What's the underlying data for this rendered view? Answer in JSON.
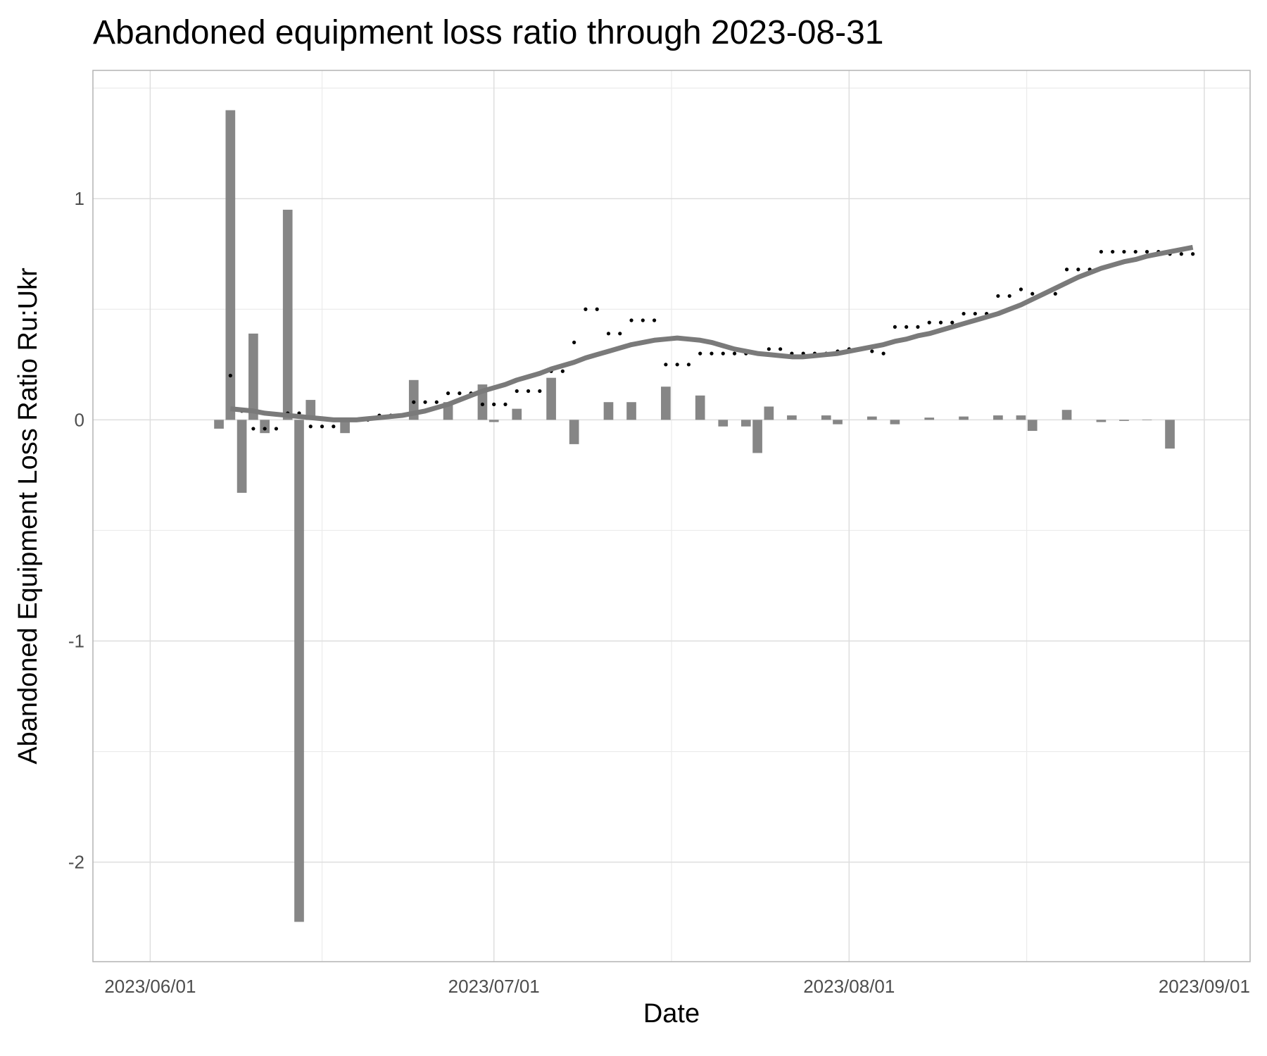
{
  "chart_data": {
    "type": "combo",
    "title": "Abandoned equipment loss ratio through 2023-08-31",
    "x_label": "Date",
    "y_label": "Abandoned Equipment Loss Ratio Ru:Ukr",
    "x": [
      "2023-06-07",
      "2023-06-08",
      "2023-06-09",
      "2023-06-10",
      "2023-06-11",
      "2023-06-12",
      "2023-06-13",
      "2023-06-14",
      "2023-06-15",
      "2023-06-16",
      "2023-06-17",
      "2023-06-18",
      "2023-06-19",
      "2023-06-20",
      "2023-06-21",
      "2023-06-22",
      "2023-06-23",
      "2023-06-24",
      "2023-06-25",
      "2023-06-26",
      "2023-06-27",
      "2023-06-28",
      "2023-06-29",
      "2023-06-30",
      "2023-07-01",
      "2023-07-02",
      "2023-07-03",
      "2023-07-04",
      "2023-07-05",
      "2023-07-06",
      "2023-07-07",
      "2023-07-08",
      "2023-07-09",
      "2023-07-10",
      "2023-07-11",
      "2023-07-12",
      "2023-07-13",
      "2023-07-14",
      "2023-07-15",
      "2023-07-16",
      "2023-07-17",
      "2023-07-18",
      "2023-07-19",
      "2023-07-20",
      "2023-07-21",
      "2023-07-22",
      "2023-07-23",
      "2023-07-24",
      "2023-07-25",
      "2023-07-26",
      "2023-07-27",
      "2023-07-28",
      "2023-07-29",
      "2023-07-30",
      "2023-07-31",
      "2023-08-01",
      "2023-08-02",
      "2023-08-03",
      "2023-08-04",
      "2023-08-05",
      "2023-08-06",
      "2023-08-07",
      "2023-08-08",
      "2023-08-09",
      "2023-08-10",
      "2023-08-11",
      "2023-08-12",
      "2023-08-13",
      "2023-08-14",
      "2023-08-15",
      "2023-08-16",
      "2023-08-17",
      "2023-08-18",
      "2023-08-19",
      "2023-08-20",
      "2023-08-21",
      "2023-08-22",
      "2023-08-23",
      "2023-08-24",
      "2023-08-25",
      "2023-08-26",
      "2023-08-27",
      "2023-08-28",
      "2023-08-29",
      "2023-08-30",
      "2023-08-31"
    ],
    "series": [
      {
        "type": "bar",
        "color": "#7f7f7f",
        "values": [
          -0.04,
          1.4,
          -0.33,
          0.39,
          -0.06,
          null,
          0.95,
          -2.27,
          0.09,
          null,
          null,
          -0.06,
          null,
          null,
          null,
          null,
          null,
          0.18,
          null,
          null,
          0.08,
          null,
          null,
          0.16,
          -0.01,
          null,
          0.05,
          null,
          null,
          0.19,
          null,
          -0.11,
          null,
          null,
          0.08,
          null,
          0.08,
          null,
          null,
          0.15,
          null,
          null,
          0.11,
          null,
          -0.03,
          null,
          -0.03,
          -0.15,
          0.06,
          null,
          0.02,
          null,
          null,
          0.02,
          -0.02,
          null,
          null,
          0.015,
          null,
          -0.02,
          null,
          null,
          0.01,
          null,
          null,
          0.015,
          null,
          null,
          0.02,
          null,
          0.02,
          -0.05,
          null,
          null,
          0.045,
          null,
          null,
          -0.01,
          null,
          -0.005,
          null,
          -0.002,
          null,
          -0.13,
          null,
          null
        ]
      },
      {
        "type": "scatter",
        "color": "#000000",
        "values": [
          null,
          0.2,
          0.04,
          -0.04,
          -0.04,
          -0.04,
          0.03,
          0.03,
          -0.03,
          -0.03,
          -0.03,
          0.0,
          0.0,
          0.0,
          0.02,
          0.02,
          0.02,
          0.08,
          0.08,
          0.08,
          0.12,
          0.12,
          0.12,
          0.07,
          0.07,
          0.07,
          0.13,
          0.13,
          0.13,
          0.22,
          0.22,
          0.35,
          0.5,
          0.5,
          0.39,
          0.39,
          0.45,
          0.45,
          0.45,
          0.25,
          0.25,
          0.25,
          0.3,
          0.3,
          0.3,
          0.3,
          0.3,
          0.3,
          0.32,
          0.32,
          0.3,
          0.3,
          0.3,
          0.3,
          0.31,
          0.32,
          0.32,
          0.31,
          0.3,
          0.42,
          0.42,
          0.42,
          0.44,
          0.44,
          0.44,
          0.48,
          0.48,
          0.48,
          0.56,
          0.56,
          0.59,
          0.57,
          0.57,
          0.57,
          0.68,
          0.68,
          0.68,
          0.76,
          0.76,
          0.76,
          0.76,
          0.76,
          0.76,
          0.75,
          0.75,
          0.75
        ]
      },
      {
        "type": "line",
        "color": "#7a7a7a",
        "values": [
          null,
          0.05,
          0.045,
          0.04,
          0.03,
          0.025,
          0.02,
          0.015,
          0.01,
          0.005,
          0.0,
          0.0,
          0.0,
          0.005,
          0.01,
          0.015,
          0.02,
          0.03,
          0.04,
          0.055,
          0.07,
          0.09,
          0.11,
          0.13,
          0.145,
          0.16,
          0.18,
          0.195,
          0.21,
          0.23,
          0.245,
          0.26,
          0.28,
          0.295,
          0.31,
          0.325,
          0.34,
          0.35,
          0.36,
          0.365,
          0.37,
          0.365,
          0.36,
          0.35,
          0.335,
          0.32,
          0.31,
          0.3,
          0.295,
          0.29,
          0.285,
          0.285,
          0.29,
          0.295,
          0.3,
          0.31,
          0.32,
          0.33,
          0.34,
          0.355,
          0.365,
          0.38,
          0.39,
          0.405,
          0.42,
          0.435,
          0.45,
          0.465,
          0.48,
          0.5,
          0.52,
          0.545,
          0.57,
          0.595,
          0.62,
          0.645,
          0.665,
          0.685,
          0.7,
          0.715,
          0.725,
          0.74,
          0.75,
          0.76,
          0.77,
          0.78
        ]
      }
    ],
    "xlim": [
      "2023-05-27",
      "2023-09-05"
    ],
    "xticks": [
      {
        "value": "2023-06-01",
        "label": "2023/06/01"
      },
      {
        "value": "2023-07-01",
        "label": "2023/07/01"
      },
      {
        "value": "2023-08-01",
        "label": "2023/08/01"
      },
      {
        "value": "2023-09-01",
        "label": "2023/09/01"
      }
    ],
    "ylim": [
      -2.45,
      1.58
    ],
    "yticks": [
      -2,
      -1,
      0,
      1
    ],
    "grid": true
  }
}
